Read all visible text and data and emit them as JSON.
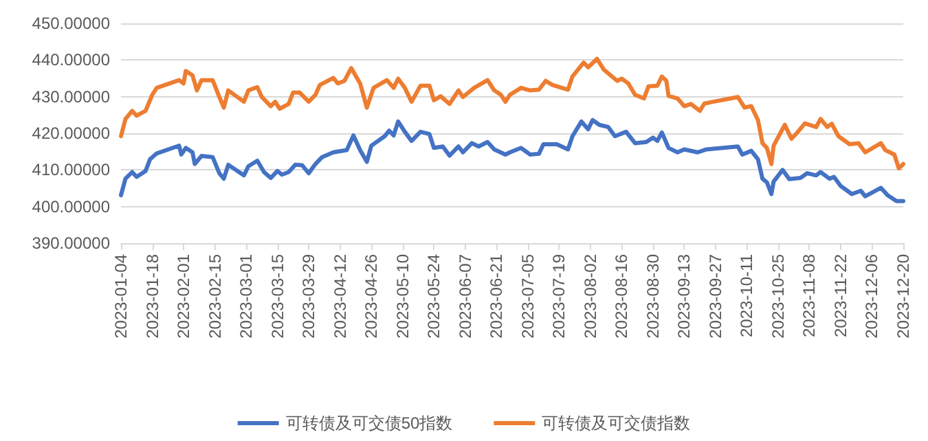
{
  "chart_data": {
    "type": "line",
    "xlim": [
      "2023-01-04",
      "2023-12-20"
    ],
    "xticks": [
      "2023-01-04",
      "2023-01-18",
      "2023-02-01",
      "2023-02-15",
      "2023-03-01",
      "2023-03-15",
      "2023-03-29",
      "2023-04-12",
      "2023-04-26",
      "2023-05-10",
      "2023-05-24",
      "2023-06-07",
      "2023-06-21",
      "2023-07-05",
      "2023-07-19",
      "2023-08-02",
      "2023-08-16",
      "2023-08-30",
      "2023-09-13",
      "2023-09-27",
      "2023-10-11",
      "2023-10-25",
      "2023-11-08",
      "2023-11-22",
      "2023-12-06",
      "2023-12-20"
    ],
    "ylim": [
      390,
      450
    ],
    "yticks": [
      {
        "value": 390,
        "label": "390.00000"
      },
      {
        "value": 400,
        "label": "400.00000"
      },
      {
        "value": 410,
        "label": "410.00000"
      },
      {
        "value": 420,
        "label": "420.00000"
      },
      {
        "value": 430,
        "label": "430.00000"
      },
      {
        "value": 440,
        "label": "440.00000"
      },
      {
        "value": 450,
        "label": "450.00000"
      }
    ],
    "grid": "y",
    "legend": "bottom",
    "marker": "none",
    "line_style": "solid",
    "series": [
      {
        "name": "可转债及可交债50指数",
        "color": "#4472c4",
        "x": [
          "2023-01-04",
          "2023-01-06",
          "2023-01-09",
          "2023-01-11",
          "2023-01-15",
          "2023-01-17",
          "2023-01-20",
          "2023-01-30",
          "2023-01-31",
          "2023-02-02",
          "2023-02-05",
          "2023-02-06",
          "2023-02-09",
          "2023-02-14",
          "2023-02-17",
          "2023-02-19",
          "2023-02-21",
          "2023-02-28",
          "2023-03-02",
          "2023-03-06",
          "2023-03-09",
          "2023-03-12",
          "2023-03-15",
          "2023-03-17",
          "2023-03-20",
          "2023-03-23",
          "2023-03-26",
          "2023-03-29",
          "2023-04-01",
          "2023-04-04",
          "2023-04-09",
          "2023-04-15",
          "2023-04-18",
          "2023-04-21",
          "2023-04-24",
          "2023-04-26",
          "2023-05-02",
          "2023-05-04",
          "2023-05-06",
          "2023-05-08",
          "2023-05-11",
          "2023-05-14",
          "2023-05-18",
          "2023-05-22",
          "2023-05-24",
          "2023-05-28",
          "2023-05-31",
          "2023-06-04",
          "2023-06-06",
          "2023-06-10",
          "2023-06-13",
          "2023-06-17",
          "2023-06-20",
          "2023-06-25",
          "2023-06-27",
          "2023-07-02",
          "2023-07-06",
          "2023-07-10",
          "2023-07-12",
          "2023-07-18",
          "2023-07-23",
          "2023-07-25",
          "2023-07-29",
          "2023-08-01",
          "2023-08-03",
          "2023-08-06",
          "2023-08-10",
          "2023-08-13",
          "2023-08-18",
          "2023-08-22",
          "2023-08-27",
          "2023-08-30",
          "2023-09-01",
          "2023-09-03",
          "2023-09-06",
          "2023-09-10",
          "2023-09-13",
          "2023-09-19",
          "2023-09-23",
          "2023-10-07",
          "2023-10-09",
          "2023-10-13",
          "2023-10-16",
          "2023-10-18",
          "2023-10-20",
          "2023-10-22",
          "2023-10-23",
          "2023-10-27",
          "2023-10-30",
          "2023-11-04",
          "2023-11-07",
          "2023-11-11",
          "2023-11-13",
          "2023-11-17",
          "2023-11-19",
          "2023-11-22",
          "2023-11-27",
          "2023-12-01",
          "2023-12-03",
          "2023-12-10",
          "2023-12-13",
          "2023-12-17",
          "2023-12-20"
        ],
        "values": [
          403.1,
          407.6,
          409.4,
          408.1,
          409.7,
          412.9,
          414.5,
          416.6,
          414.2,
          416,
          414.8,
          411.6,
          413.8,
          413.5,
          409.1,
          407.6,
          411.4,
          408.5,
          411,
          412.5,
          409.4,
          407.8,
          409.7,
          408.7,
          409.4,
          411.4,
          411.3,
          409.1,
          411.6,
          413.5,
          414.8,
          415.4,
          419.4,
          415.4,
          412.2,
          416.6,
          419.2,
          420.7,
          419.4,
          423.2,
          420.4,
          417.9,
          420.4,
          419.8,
          416,
          416.4,
          413.9,
          416.4,
          414.8,
          417.3,
          416.4,
          417.6,
          415.6,
          414.2,
          414.8,
          416,
          414.2,
          414.4,
          417,
          417,
          415.6,
          419.2,
          423.2,
          421.1,
          423.6,
          422.3,
          421.7,
          419.2,
          420.4,
          417.3,
          417.6,
          418.8,
          417.9,
          420.2,
          416,
          414.8,
          415.6,
          414.8,
          415.6,
          416.4,
          414.2,
          415.2,
          412.9,
          407.6,
          406.6,
          403.4,
          406.8,
          410,
          407.5,
          407.8,
          409.1,
          408.5,
          409.4,
          407.6,
          408.1,
          405.6,
          403.4,
          404.3,
          402.8,
          405.1,
          403.1,
          401.5,
          401.5
        ]
      },
      {
        "name": "可转债及可交债指数",
        "color": "#ed7d31",
        "x": [
          "2023-01-04",
          "2023-01-06",
          "2023-01-09",
          "2023-01-11",
          "2023-01-15",
          "2023-01-18",
          "2023-01-20",
          "2023-01-30",
          "2023-02-01",
          "2023-02-02",
          "2023-02-05",
          "2023-02-07",
          "2023-02-09",
          "2023-02-14",
          "2023-02-17",
          "2023-02-19",
          "2023-02-21",
          "2023-02-28",
          "2023-03-02",
          "2023-03-06",
          "2023-03-08",
          "2023-03-12",
          "2023-03-14",
          "2023-03-16",
          "2023-03-20",
          "2023-03-22",
          "2023-03-25",
          "2023-03-29",
          "2023-04-01",
          "2023-04-03",
          "2023-04-09",
          "2023-04-11",
          "2023-04-14",
          "2023-04-17",
          "2023-04-21",
          "2023-04-24",
          "2023-04-27",
          "2023-05-03",
          "2023-05-06",
          "2023-05-08",
          "2023-05-11",
          "2023-05-14",
          "2023-05-18",
          "2023-05-22",
          "2023-05-24",
          "2023-05-27",
          "2023-05-31",
          "2023-06-04",
          "2023-06-06",
          "2023-06-11",
          "2023-06-17",
          "2023-06-20",
          "2023-06-23",
          "2023-06-25",
          "2023-06-27",
          "2023-07-02",
          "2023-07-06",
          "2023-07-10",
          "2023-07-13",
          "2023-07-16",
          "2023-07-23",
          "2023-07-25",
          "2023-07-30",
          "2023-08-01",
          "2023-08-05",
          "2023-08-08",
          "2023-08-14",
          "2023-08-16",
          "2023-08-19",
          "2023-08-22",
          "2023-08-26",
          "2023-08-28",
          "2023-09-01",
          "2023-09-03",
          "2023-09-05",
          "2023-09-06",
          "2023-09-10",
          "2023-09-13",
          "2023-09-16",
          "2023-09-20",
          "2023-09-22",
          "2023-09-26",
          "2023-10-07",
          "2023-10-10",
          "2023-10-13",
          "2023-10-16",
          "2023-10-18",
          "2023-10-20",
          "2023-10-22",
          "2023-10-23",
          "2023-10-28",
          "2023-10-31",
          "2023-11-02",
          "2023-11-06",
          "2023-11-11",
          "2023-11-13",
          "2023-11-16",
          "2023-11-18",
          "2023-11-21",
          "2023-11-26",
          "2023-11-30",
          "2023-12-03",
          "2023-12-10",
          "2023-12-12",
          "2023-12-16",
          "2023-12-18",
          "2023-12-20"
        ],
        "values": [
          419.2,
          423.9,
          426.1,
          424.8,
          426.1,
          430.5,
          432.4,
          434.5,
          433.6,
          437,
          435.8,
          431.7,
          434.5,
          434.5,
          429.9,
          427,
          431.7,
          428.6,
          431.7,
          432.6,
          429.9,
          427.4,
          428.6,
          426.7,
          428,
          431.1,
          431.1,
          428.6,
          430.5,
          433.2,
          435.1,
          433.6,
          434.3,
          437.8,
          433.6,
          427,
          432.4,
          434.5,
          432.4,
          434.9,
          432.4,
          428.6,
          433,
          433,
          429,
          430.1,
          428,
          431.7,
          429.9,
          432.4,
          434.5,
          431.7,
          430.5,
          428.6,
          430.5,
          432.4,
          431.7,
          431.9,
          434.3,
          433.2,
          431.9,
          435.5,
          439.3,
          438,
          440.3,
          437.4,
          434.3,
          434.9,
          433.6,
          430.5,
          429.5,
          432.8,
          433,
          435.5,
          434.3,
          430.2,
          429.5,
          427.4,
          428,
          426.1,
          428.1,
          428.6,
          429.9,
          427,
          427.4,
          423.6,
          417.3,
          416,
          411.6,
          416.6,
          422.3,
          418.5,
          419.8,
          422.7,
          421.7,
          423.9,
          421.7,
          422.6,
          419.2,
          417,
          417.3,
          414.8,
          417.3,
          415.4,
          414.2,
          410.4,
          411.6
        ]
      }
    ]
  }
}
